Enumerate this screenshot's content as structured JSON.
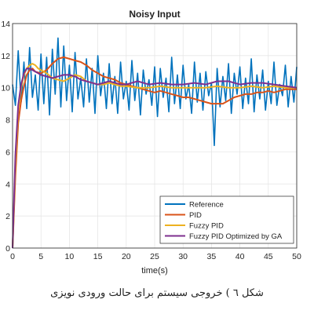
{
  "chart_data": {
    "type": "line",
    "title": "Noisy Input",
    "xlabel": "time(s)",
    "ylabel": "",
    "xlim": [
      0,
      50
    ],
    "ylim": [
      0,
      14
    ],
    "xticks": [
      "0",
      "5",
      "10",
      "15",
      "20",
      "25",
      "30",
      "35",
      "40",
      "45",
      "50"
    ],
    "yticks": [
      "0",
      "2",
      "4",
      "6",
      "8",
      "10",
      "12",
      "14"
    ],
    "grid": true,
    "legend_position": "bottom-right",
    "series": [
      {
        "name": "Reference",
        "color": "#0072BD",
        "x": [
          0,
          0.5,
          1,
          1.5,
          2,
          2.5,
          3,
          3.5,
          4,
          4.5,
          5,
          5.5,
          6,
          6.5,
          7,
          7.5,
          8,
          8.5,
          9,
          9.5,
          10,
          10.5,
          11,
          11.5,
          12,
          12.5,
          13,
          13.5,
          14,
          14.5,
          15,
          15.5,
          16,
          16.5,
          17,
          17.5,
          18,
          18.5,
          19,
          19.5,
          20,
          20.5,
          21,
          21.5,
          22,
          22.5,
          23,
          23.5,
          24,
          24.5,
          25,
          25.5,
          26,
          26.5,
          27,
          27.5,
          28,
          28.5,
          29,
          29.5,
          30,
          30.5,
          31,
          31.5,
          32,
          32.5,
          33,
          33.5,
          34,
          34.5,
          35,
          35.5,
          36,
          36.5,
          37,
          37.5,
          38,
          38.5,
          39,
          39.5,
          40,
          40.5,
          41,
          41.5,
          42,
          42.5,
          43,
          43.5,
          44,
          44.5,
          45,
          45.5,
          46,
          46.5,
          47,
          47.5,
          48,
          48.5,
          49,
          49.5,
          50
        ],
        "values": [
          10.2,
          8.9,
          12.3,
          9.1,
          11.6,
          8.7,
          12.5,
          9.4,
          10.8,
          8.6,
          12.1,
          9.0,
          11.9,
          8.3,
          12.4,
          9.6,
          13.1,
          8.8,
          12.6,
          9.2,
          11.4,
          8.5,
          12.2,
          9.3,
          10.6,
          8.8,
          11.8,
          9.1,
          11.2,
          8.4,
          12.0,
          9.5,
          10.9,
          8.7,
          11.5,
          9.0,
          10.7,
          8.4,
          11.6,
          9.3,
          10.4,
          8.6,
          11.7,
          9.2,
          10.9,
          8.3,
          11.1,
          9.6,
          10.5,
          8.9,
          11.3,
          8.2,
          11.2,
          9.4,
          10.6,
          8.5,
          11.9,
          9.0,
          10.8,
          8.7,
          11.4,
          9.3,
          10.2,
          8.4,
          11.6,
          9.1,
          10.9,
          8.6,
          11.0,
          9.5,
          10.3,
          6.4,
          11.2,
          8.8,
          10.7,
          9.2,
          11.5,
          8.4,
          10.9,
          9.6,
          11.3,
          8.7,
          10.6,
          9.0,
          11.8,
          8.5,
          10.8,
          9.3,
          11.1,
          8.6,
          10.4,
          9.0,
          11.6,
          8.9,
          10.2,
          9.5,
          11.4,
          8.8,
          10.7,
          9.1,
          11.3
        ]
      },
      {
        "name": "PID",
        "color": "#D95319",
        "x": [
          0,
          0.5,
          1,
          1.5,
          2,
          2.5,
          3,
          3.5,
          4,
          5,
          6,
          7,
          8,
          9,
          10,
          11,
          12,
          13,
          14,
          15,
          16,
          17,
          18,
          19,
          20,
          21,
          22,
          23,
          24,
          25,
          26,
          27,
          28,
          29,
          30,
          31,
          32,
          33,
          34,
          35,
          36,
          37,
          38,
          39,
          40,
          41,
          42,
          43,
          44,
          45,
          46,
          47,
          48,
          49,
          50
        ],
        "values": [
          0,
          4.5,
          7.8,
          9.2,
          10.1,
          10.8,
          11.1,
          11.2,
          11.0,
          10.9,
          11.1,
          11.5,
          11.8,
          11.9,
          11.8,
          11.7,
          11.6,
          11.4,
          11.1,
          10.9,
          10.7,
          10.6,
          10.5,
          10.3,
          10.2,
          10.1,
          10.0,
          9.9,
          9.8,
          9.7,
          9.8,
          9.7,
          9.6,
          9.5,
          9.4,
          9.4,
          9.3,
          9.2,
          9.1,
          9.0,
          9.0,
          9.0,
          9.2,
          9.4,
          9.5,
          9.6,
          9.6,
          9.7,
          9.7,
          9.8,
          9.7,
          9.8,
          9.9,
          9.9,
          9.9
        ]
      },
      {
        "name": "Fuzzy PID",
        "color": "#EDB120",
        "x": [
          0,
          0.5,
          1,
          1.5,
          2,
          2.5,
          3,
          3.5,
          4,
          4.5,
          5,
          6,
          7,
          8,
          9,
          10,
          11,
          12,
          13,
          14,
          15,
          16,
          17,
          18,
          19,
          20,
          22,
          24,
          26,
          28,
          30,
          32,
          34,
          36,
          38,
          40,
          42,
          44,
          46,
          48,
          50
        ],
        "values": [
          0,
          5.2,
          8.6,
          10.0,
          10.8,
          11.2,
          11.4,
          11.5,
          11.4,
          11.2,
          11.1,
          10.9,
          10.6,
          10.5,
          10.4,
          10.6,
          10.8,
          10.7,
          10.4,
          10.3,
          10.2,
          10.2,
          10.3,
          10.2,
          10.1,
          10.1,
          10.0,
          10.0,
          10.1,
          10.0,
          10.0,
          10.0,
          10.0,
          10.1,
          10.0,
          10.0,
          10.1,
          10.0,
          10.1,
          10.0,
          10.0
        ]
      },
      {
        "name": "Fuzzy PID Optimized by GA",
        "color": "#7E2F8E",
        "x": [
          0,
          0.5,
          1,
          1.5,
          2,
          2.5,
          3,
          3.5,
          4,
          4.5,
          5,
          6,
          7,
          8,
          9,
          10,
          11,
          12,
          13,
          14,
          15,
          16,
          17,
          18,
          19,
          20,
          22,
          24,
          26,
          28,
          30,
          32,
          34,
          36,
          38,
          40,
          42,
          44,
          46,
          48,
          50
        ],
        "values": [
          0,
          5.8,
          8.9,
          10.2,
          10.9,
          11.2,
          11.2,
          11.1,
          11.0,
          10.9,
          10.8,
          10.7,
          10.6,
          10.7,
          10.8,
          10.8,
          10.7,
          10.5,
          10.4,
          10.3,
          10.2,
          10.3,
          10.4,
          10.3,
          10.2,
          10.2,
          10.4,
          10.2,
          10.3,
          10.2,
          10.2,
          10.3,
          10.2,
          10.4,
          10.4,
          10.2,
          10.3,
          10.3,
          10.2,
          10.1,
          10.0
        ]
      }
    ]
  },
  "caption": "شکل ٦ ) خروجی سیستم برای حالت ورودی نویزی"
}
